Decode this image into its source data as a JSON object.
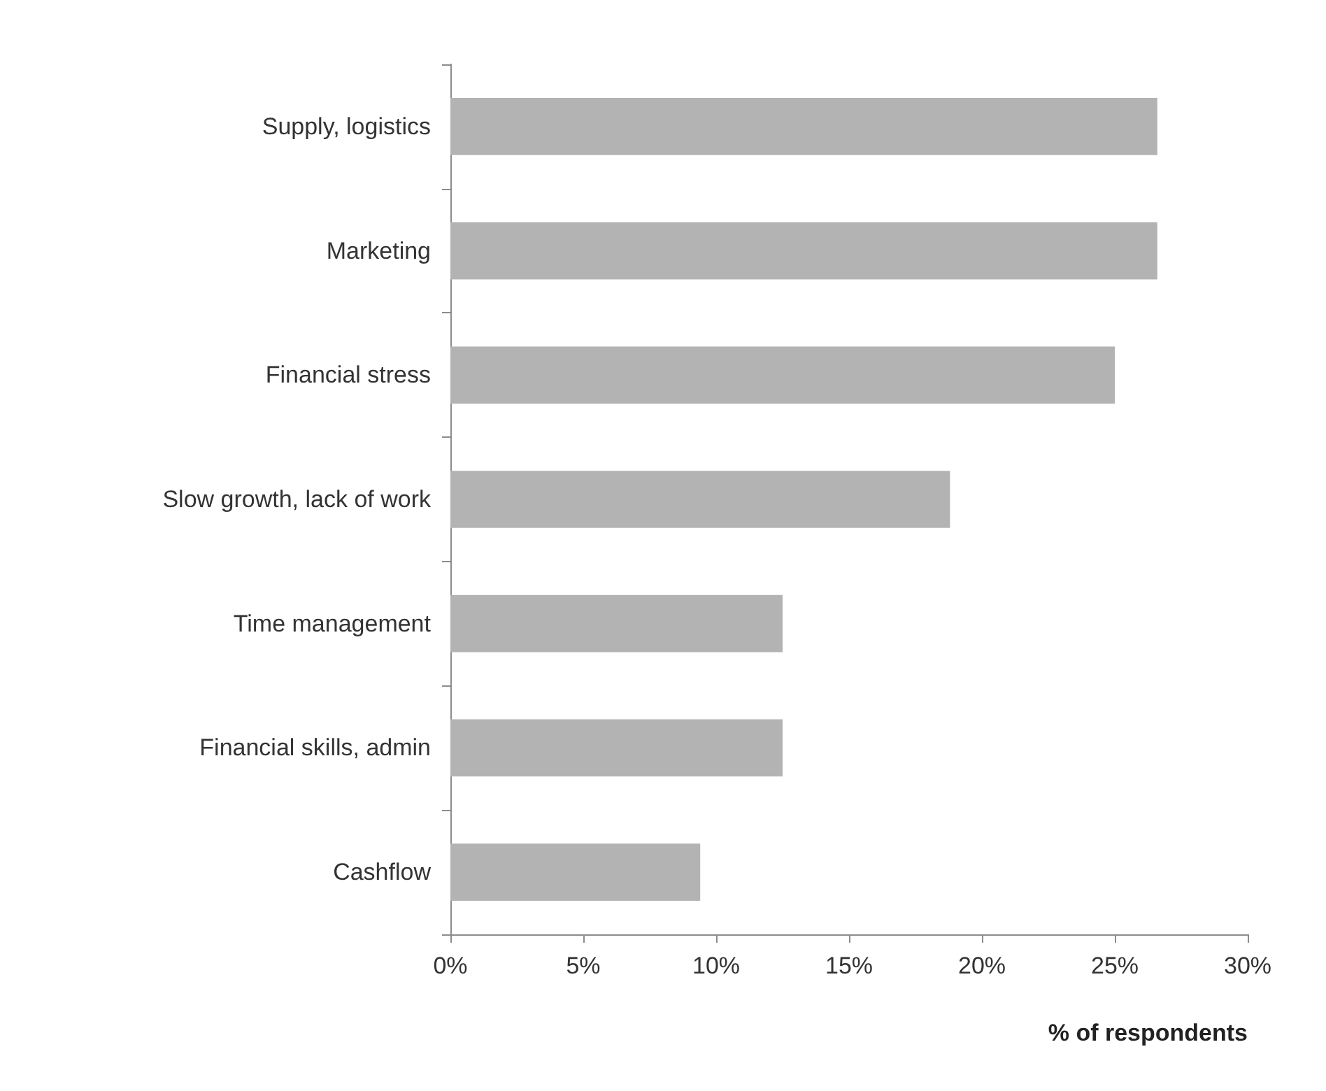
{
  "chart_data": {
    "type": "bar",
    "orientation": "horizontal",
    "xlabel": "% of respondents",
    "categories": [
      "Supply, logistics",
      "Marketing",
      "Financial stress",
      "Slow growth, lack of work",
      "Time management",
      "Financial skills, admin",
      "Cashflow"
    ],
    "values": [
      26.6,
      26.6,
      25,
      18.8,
      12.5,
      12.5,
      9.4
    ],
    "color": "#b3b3b3",
    "xlim": [
      0,
      30
    ],
    "xticks": [
      {
        "value": 0,
        "label": "0%"
      },
      {
        "value": 5,
        "label": "5%"
      },
      {
        "value": 10,
        "label": "10%"
      },
      {
        "value": 15,
        "label": "15%"
      },
      {
        "value": 20,
        "label": "20%"
      },
      {
        "value": 25,
        "label": "25%"
      },
      {
        "value": 30,
        "label": "30%"
      }
    ],
    "grid": false
  }
}
